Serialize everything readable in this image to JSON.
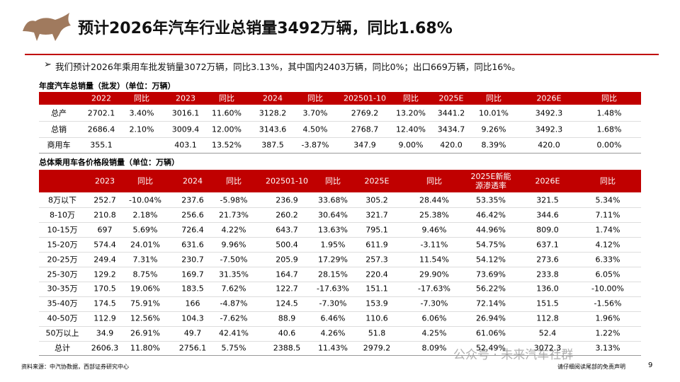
{
  "header": {
    "title": "预计2026年汽车行业总销量3492万辆，同比1.68%"
  },
  "bullet": "我们预计2026年乘用车批发销量3072万辆，同比3.13%，其中国内2403万辆，同比0%；出口669万辆，同比16%。",
  "table1": {
    "caption": "年度汽车总销量（批发）（单位：万辆）",
    "header": [
      "2022",
      "同比",
      "2023",
      "同比",
      "2024",
      "同比",
      "202501-10",
      "同比",
      "2025E",
      "同比",
      "2026E",
      "同比"
    ],
    "rows": [
      [
        "总产",
        "2702.1",
        "3.40%",
        "3016.1",
        "11.60%",
        "3128.2",
        "3.70%",
        "2769.2",
        "13.20%",
        "3441.2",
        "10.01%",
        "3492.3",
        "1.48%"
      ],
      [
        "总销",
        "2686.4",
        "2.10%",
        "3009.4",
        "12.00%",
        "3143.6",
        "4.50%",
        "2768.7",
        "12.40%",
        "3434.7",
        "9.26%",
        "3492.3",
        "1.68%"
      ],
      [
        "商用车",
        "355.1",
        null,
        "403.1",
        "13.52%",
        "387.5",
        "-3.87%",
        "347.9",
        "9.00%",
        "420.0",
        "8.39%",
        "420.0",
        "0.00%"
      ]
    ]
  },
  "table2": {
    "caption": "总体乘用车各价格段销量（单位：万辆）",
    "header": [
      "2023",
      "同比",
      "2024",
      "同比",
      "202501-10",
      "同比",
      "2025E",
      "同比",
      "2025E新能源渗透率",
      "2026E",
      "同比"
    ],
    "rows": [
      [
        "8万以下",
        "252.7",
        "-10.04%",
        "237.6",
        "-5.98%",
        "236.9",
        "33.68%",
        "305.2",
        "28.44%",
        "53.35%",
        "321.5",
        "5.34%"
      ],
      [
        "8-10万",
        "210.8",
        "2.18%",
        "256.6",
        "21.73%",
        "260.2",
        "30.64%",
        "321.7",
        "25.38%",
        "46.42%",
        "344.6",
        "7.11%"
      ],
      [
        "10-15万",
        "697",
        "5.69%",
        "726.4",
        "4.22%",
        "643.7",
        "13.63%",
        "795.1",
        "9.46%",
        "44.96%",
        "809.0",
        "1.74%"
      ],
      [
        "15-20万",
        "574.4",
        "24.01%",
        "631.6",
        "9.96%",
        "500.4",
        "1.95%",
        "611.9",
        "-3.11%",
        "54.75%",
        "637.1",
        "4.12%"
      ],
      [
        "20-25万",
        "249.4",
        "7.31%",
        "230.7",
        "-7.50%",
        "205.9",
        "17.29%",
        "257.3",
        "11.54%",
        "54.12%",
        "273.6",
        "6.33%"
      ],
      [
        "25-30万",
        "129.2",
        "8.75%",
        "169.7",
        "31.35%",
        "164.7",
        "28.15%",
        "220.4",
        "29.90%",
        "73.69%",
        "233.8",
        "6.05%"
      ],
      [
        "30-35万",
        "170.5",
        "19.06%",
        "183.5",
        "7.62%",
        "122.7",
        "-17.63%",
        "151.1",
        "-17.63%",
        "56.22%",
        "136.0",
        "-10.00%"
      ],
      [
        "35-40万",
        "174.5",
        "75.91%",
        "166",
        "-4.87%",
        "124.5",
        "-7.30%",
        "153.9",
        "-7.30%",
        "72.14%",
        "151.5",
        "-1.56%"
      ],
      [
        "40-50万",
        "112.9",
        "12.56%",
        "104.3",
        "-7.62%",
        "88.9",
        "6.46%",
        "110.6",
        "6.06%",
        "26.94%",
        "112.8",
        "1.96%"
      ],
      [
        "50万以上",
        "34.9",
        "26.91%",
        "49.7",
        "42.41%",
        "40.6",
        "4.26%",
        "51.8",
        "4.25%",
        "61.06%",
        "52.4",
        "1.22%"
      ],
      [
        "总计",
        "2606.3",
        "11.80%",
        "2756.1",
        "5.75%",
        "2388.5",
        "11.43%",
        "2979.2",
        "8.09%",
        "52.49%",
        "3072.3",
        "3.13%"
      ]
    ]
  },
  "footer": {
    "source": "资料来源：中汽协数据，西部证券研究中心",
    "disclaimer": "请仔细阅读尾部的免责声明",
    "page": "9",
    "watermark": "公众号 · 未来汽车社群"
  }
}
